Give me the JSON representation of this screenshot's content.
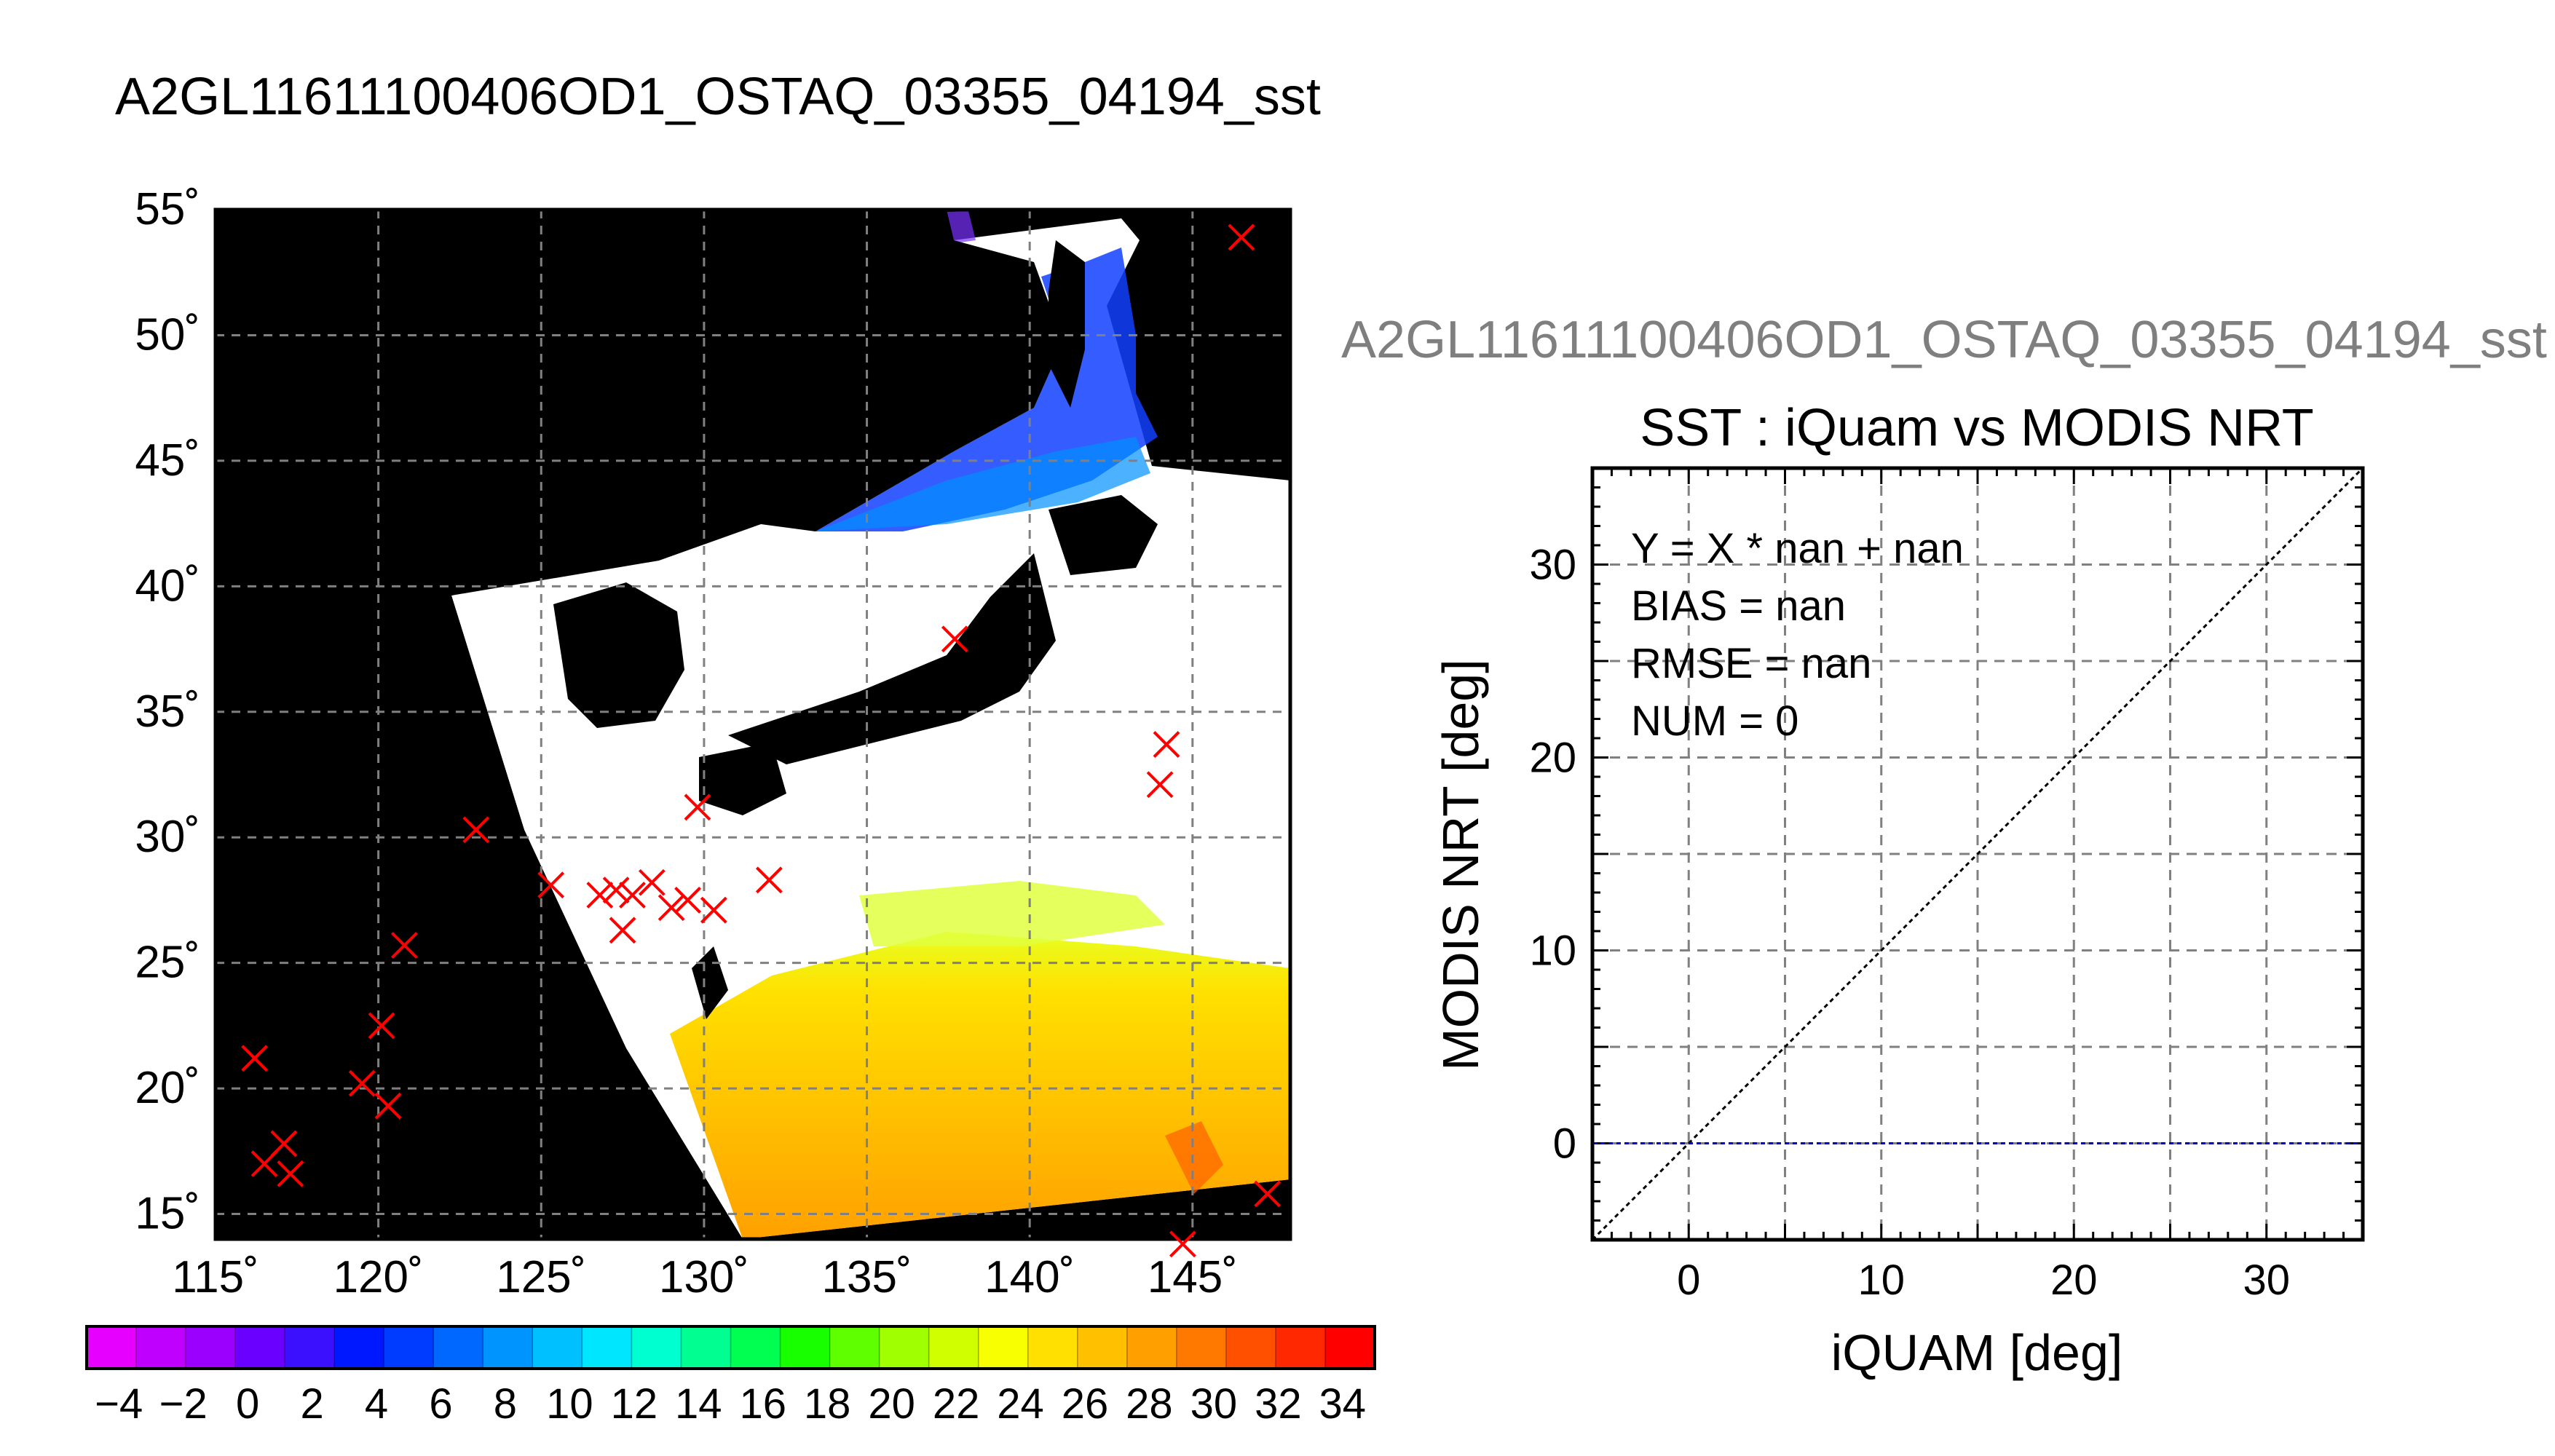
{
  "page_title": "A2GL11611100406OD1_OSTAQ_03355_04194_sst",
  "right_title": "A2GL11611100406OD1_OSTAQ_03355_04194_sst",
  "colors": {
    "land": "#000000",
    "cloud": "#ffffff",
    "marker": "#ff0000",
    "grid": "#808080",
    "zero_line": "#0000cc"
  },
  "chart_data": [
    {
      "type": "map",
      "xlim": [
        115,
        148
      ],
      "ylim": [
        14,
        55
      ],
      "x_ticks": [
        115,
        120,
        125,
        130,
        135,
        140,
        145
      ],
      "x_tick_labels": [
        "115˚",
        "120˚",
        "125˚",
        "130˚",
        "135˚",
        "140˚",
        "145˚"
      ],
      "y_ticks": [
        15,
        20,
        25,
        30,
        35,
        40,
        45,
        50,
        55
      ],
      "y_tick_labels": [
        "15˚",
        "20˚",
        "25˚",
        "30˚",
        "35˚",
        "40˚",
        "45˚",
        "50˚",
        "55˚"
      ],
      "grid": true,
      "markers": [
        {
          "lon": 146.5,
          "lat": 53.9
        },
        {
          "lon": 137.7,
          "lat": 37.9
        },
        {
          "lon": 144.2,
          "lat": 33.7
        },
        {
          "lon": 144.0,
          "lat": 32.1
        },
        {
          "lon": 123.0,
          "lat": 30.3
        },
        {
          "lon": 129.8,
          "lat": 31.2
        },
        {
          "lon": 132.0,
          "lat": 28.3
        },
        {
          "lon": 125.3,
          "lat": 28.1
        },
        {
          "lon": 126.8,
          "lat": 27.7
        },
        {
          "lon": 127.3,
          "lat": 27.9
        },
        {
          "lon": 127.8,
          "lat": 27.7
        },
        {
          "lon": 128.4,
          "lat": 28.2
        },
        {
          "lon": 129.0,
          "lat": 27.2
        },
        {
          "lon": 129.5,
          "lat": 27.5
        },
        {
          "lon": 130.3,
          "lat": 27.1
        },
        {
          "lon": 127.5,
          "lat": 26.3
        },
        {
          "lon": 120.8,
          "lat": 25.7
        },
        {
          "lon": 120.1,
          "lat": 22.5
        },
        {
          "lon": 116.2,
          "lat": 21.2
        },
        {
          "lon": 119.5,
          "lat": 20.2
        },
        {
          "lon": 120.3,
          "lat": 19.3
        },
        {
          "lon": 117.1,
          "lat": 17.8
        },
        {
          "lon": 116.5,
          "lat": 17.0
        },
        {
          "lon": 117.3,
          "lat": 16.6
        },
        {
          "lon": 147.3,
          "lat": 15.8
        },
        {
          "lon": 144.7,
          "lat": 13.8
        }
      ]
    },
    {
      "type": "scatter",
      "title": "SST : iQuam vs MODIS NRT",
      "xlabel": "iQUAM [deg]",
      "ylabel": "MODIS NRT [deg]",
      "xlim": [
        -5,
        35
      ],
      "ylim": [
        -5,
        35
      ],
      "x_ticks": [
        0,
        10,
        20,
        30
      ],
      "y_ticks": [
        0,
        10,
        20,
        30
      ],
      "grid": true,
      "stats": [
        "Y = X * nan + nan",
        "BIAS = nan",
        "RMSE = nan",
        "NUM = 0"
      ],
      "reference_line": {
        "name": "y = x",
        "from": [
          -5,
          -5
        ],
        "to": [
          35,
          35
        ]
      },
      "fit_line": {
        "y": 0
      },
      "points": []
    },
    {
      "type": "colorbar",
      "ticks": [
        -4,
        -2,
        0,
        2,
        4,
        6,
        8,
        10,
        12,
        14,
        16,
        18,
        20,
        22,
        24,
        26,
        28,
        30,
        32,
        34
      ],
      "tick_labels": [
        "−4",
        "−2",
        "0",
        "2",
        "4",
        "6",
        "8",
        "10",
        "12",
        "14",
        "16",
        "18",
        "20",
        "22",
        "24",
        "26",
        "28",
        "30",
        "32",
        "34"
      ],
      "range": [
        -5,
        35
      ],
      "colors": [
        "#e600ff",
        "#c000ff",
        "#9b00ff",
        "#6a00ff",
        "#3a10ff",
        "#0018ff",
        "#003cff",
        "#0068ff",
        "#0094ff",
        "#00c0ff",
        "#00e6ff",
        "#00ffd0",
        "#00ff90",
        "#00ff50",
        "#18ff00",
        "#60ff00",
        "#a0ff00",
        "#d0ff00",
        "#f8ff00",
        "#ffe000",
        "#ffc000",
        "#ffa000",
        "#ff7800",
        "#ff5000",
        "#ff2800",
        "#ff0000"
      ]
    }
  ]
}
